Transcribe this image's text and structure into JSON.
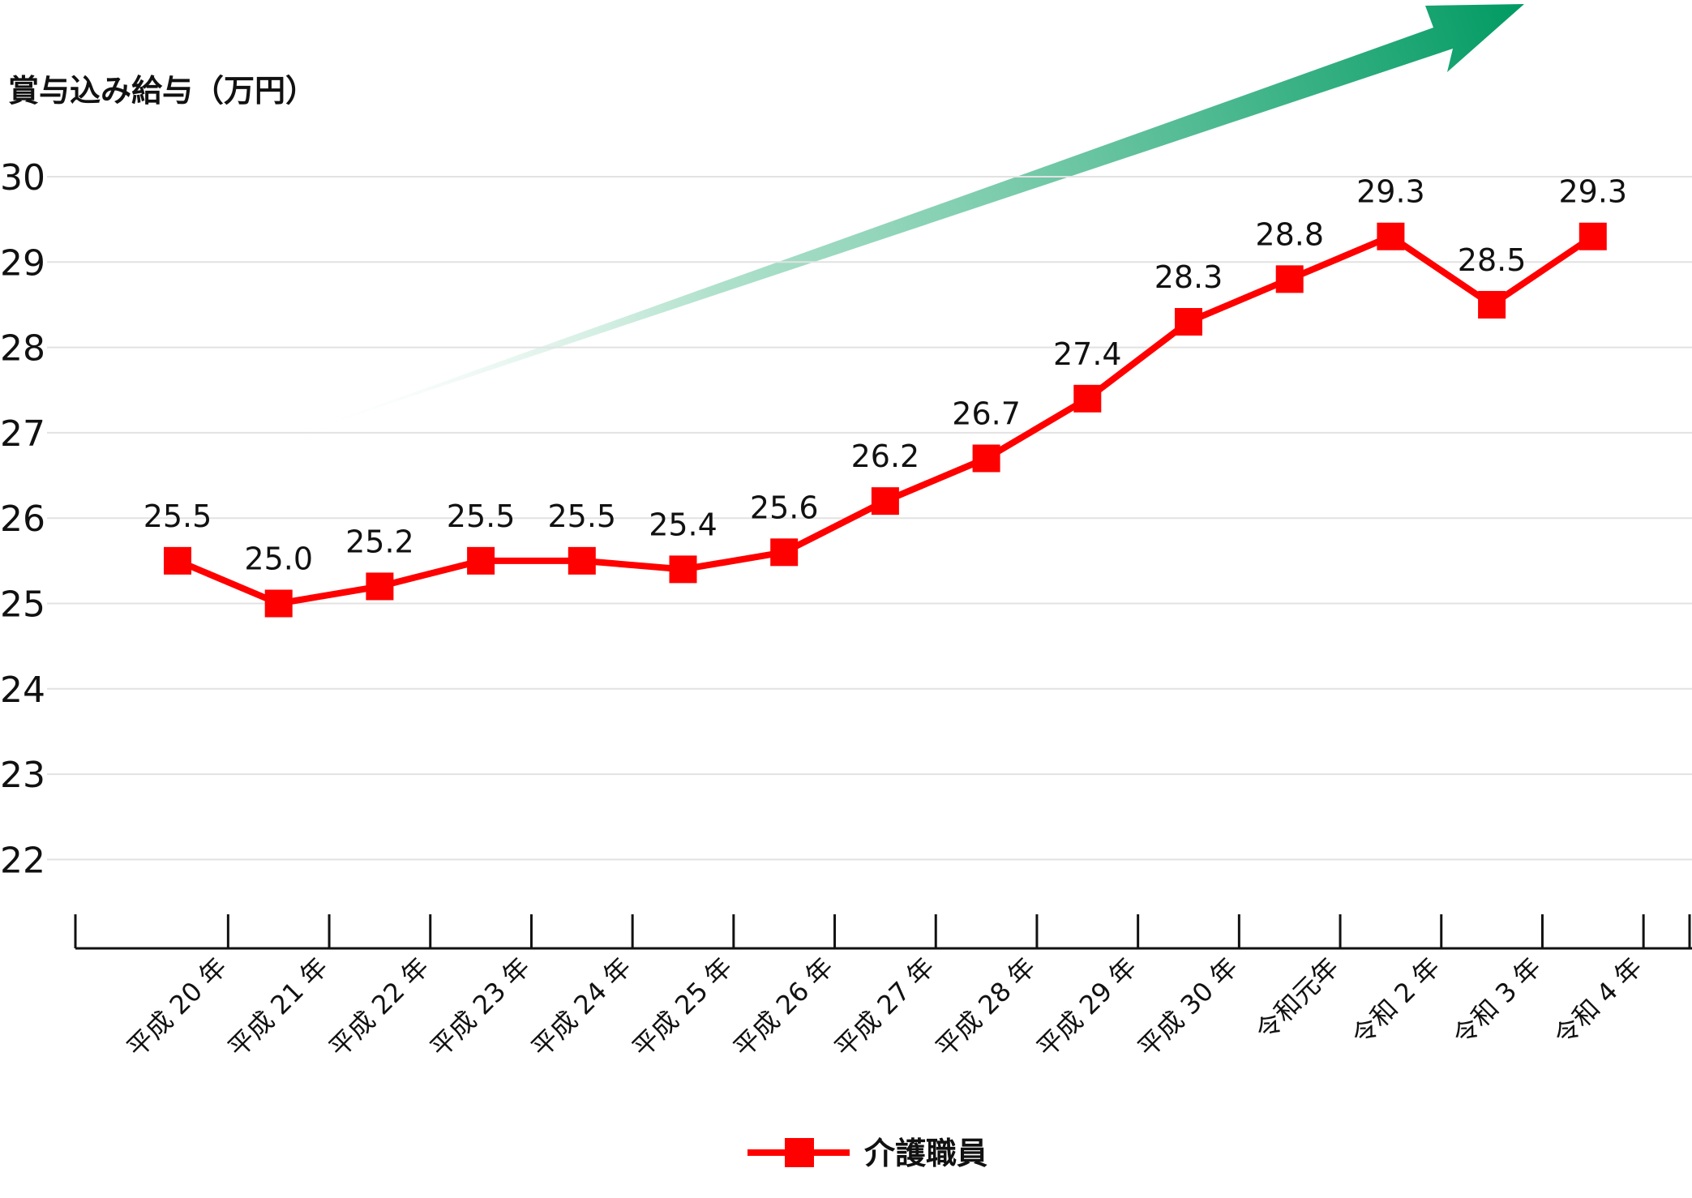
{
  "chart_data": {
    "type": "line",
    "ylabel": "賞与込み給与（万円）",
    "ylim": [
      22,
      30
    ],
    "yticks": [
      "22",
      "23",
      "24",
      "25",
      "26",
      "27",
      "28",
      "29",
      "30"
    ],
    "categories": [
      "平成 20 年",
      "平成 21 年",
      "平成 22 年",
      "平成 23 年",
      "平成 24 年",
      "平成 25 年",
      "平成 26 年",
      "平成 27 年",
      "平成 28 年",
      "平成 29 年",
      "平成 30 年",
      "令和元年",
      "令和 2 年",
      "令和 3 年",
      "令和 4 年"
    ],
    "series": [
      {
        "name": "介護職員",
        "values": [
          25.5,
          25.0,
          25.2,
          25.5,
          25.5,
          25.4,
          25.6,
          26.2,
          26.7,
          27.4,
          28.3,
          28.8,
          29.3,
          28.5,
          29.3
        ],
        "labels": [
          "25.5",
          "25.0",
          "25.2",
          "25.5",
          "25.5",
          "25.4",
          "25.6",
          "26.2",
          "26.7",
          "27.4",
          "28.3",
          "28.8",
          "29.3",
          "28.5",
          "29.3"
        ]
      }
    ],
    "grid": true,
    "legend": "bottom-center",
    "colors": {
      "series": "#ff0000",
      "grid": "#e2e2e2",
      "axis": "#111111",
      "arrow_start": "#ffffff",
      "arrow_end": "#009a63"
    }
  }
}
